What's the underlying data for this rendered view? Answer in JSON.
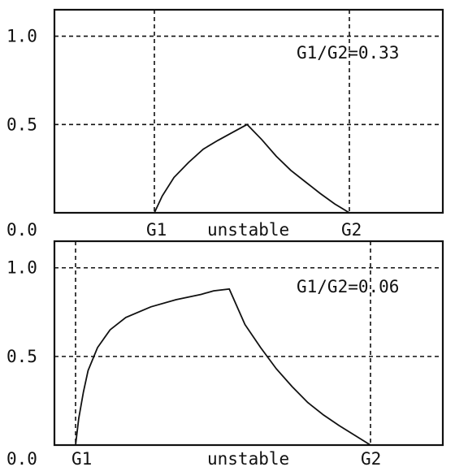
{
  "chart_data": [
    {
      "type": "line",
      "annotation": "G1/G2=0.33",
      "ylim": [
        0,
        1.15
      ],
      "y_ticks": [
        "0.0",
        "0.5",
        "1.0"
      ],
      "y_gridlines": [
        0.5,
        1.0
      ],
      "x_labels": {
        "g1": "G1",
        "middle": "unstable",
        "g2": "G2"
      },
      "x_range": [
        0.0,
        1.0
      ],
      "g1_x": 0.333,
      "g2_x": 1.0,
      "series": [
        {
          "x": [
            0.333,
            0.36,
            0.4,
            0.45,
            0.5,
            0.55,
            0.6,
            0.65,
            0.7,
            0.75,
            0.8,
            0.85,
            0.9,
            0.95,
            1.0
          ],
          "y": [
            0.0,
            0.095,
            0.2,
            0.285,
            0.36,
            0.41,
            0.455,
            0.5,
            0.415,
            0.32,
            0.24,
            0.175,
            0.11,
            0.05,
            0.0
          ]
        }
      ]
    },
    {
      "type": "line",
      "annotation": "G1/G2=0.06",
      "ylim": [
        0,
        1.15
      ],
      "y_ticks": [
        "0.0",
        "0.5",
        "1.0"
      ],
      "y_gridlines": [
        0.5,
        1.0
      ],
      "x_labels": {
        "g1": "G1",
        "middle": "unstable",
        "g2": "G2"
      },
      "x_range": [
        0.0,
        1.0
      ],
      "g1_x": 0.06,
      "g2_x": 1.0,
      "series": [
        {
          "x": [
            0.06,
            0.07,
            0.085,
            0.1,
            0.13,
            0.17,
            0.22,
            0.3,
            0.38,
            0.46,
            0.5,
            0.55,
            0.6,
            0.65,
            0.7,
            0.75,
            0.8,
            0.85,
            0.9,
            0.95,
            1.0
          ],
          "y": [
            0.0,
            0.15,
            0.3,
            0.42,
            0.55,
            0.65,
            0.72,
            0.78,
            0.82,
            0.85,
            0.87,
            0.88,
            0.68,
            0.55,
            0.43,
            0.33,
            0.24,
            0.17,
            0.11,
            0.055,
            0.0
          ]
        }
      ]
    }
  ]
}
